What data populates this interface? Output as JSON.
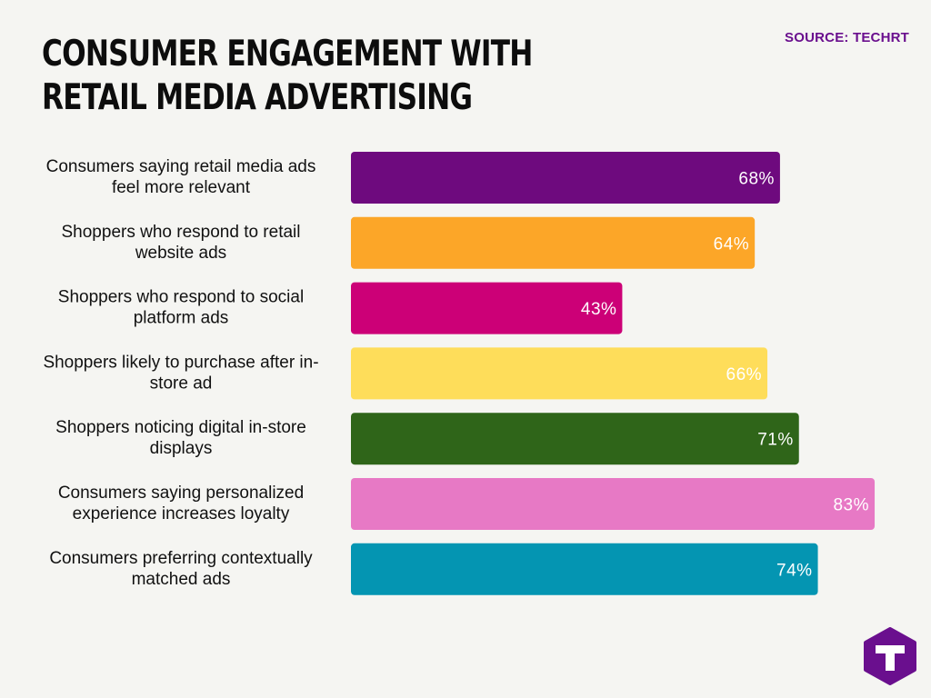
{
  "header": {
    "title": "CONSUMER ENGAGEMENT WITH RETAIL MEDIA ADVERTISING",
    "source": "SOURCE: TECHRT"
  },
  "chart_data": {
    "type": "bar",
    "orientation": "horizontal",
    "title": "CONSUMER ENGAGEMENT WITH RETAIL MEDIA ADVERTISING",
    "xlabel": "",
    "ylabel": "",
    "xlim": [
      0,
      100
    ],
    "grid": false,
    "legend": "none",
    "categories": [
      [
        "Consumers saying retail media ads",
        "feel more relevant"
      ],
      [
        "Shoppers who respond to retail",
        "website ads"
      ],
      [
        "Shoppers who respond to social",
        "platform ads"
      ],
      [
        "Shoppers likely to purchase after in-",
        "store ad"
      ],
      [
        "Shoppers noticing digital in-store",
        "displays"
      ],
      [
        "Consumers saying personalized",
        "experience increases loyalty"
      ],
      [
        "Consumers preferring contextually",
        "matched ads"
      ]
    ],
    "values": [
      68,
      64,
      43,
      66,
      71,
      83,
      74
    ],
    "value_labels": [
      "68%",
      "64%",
      "43%",
      "66%",
      "71%",
      "83%",
      "74%"
    ],
    "colors": [
      "#6e0a7e",
      "#fca628",
      "#cc0077",
      "#fedd5a",
      "#2f6519",
      "#e779c5",
      "#0495b2"
    ]
  },
  "logo": {
    "icon": "techrt-t-hexagon-icon",
    "color": "#6a0f8e"
  }
}
